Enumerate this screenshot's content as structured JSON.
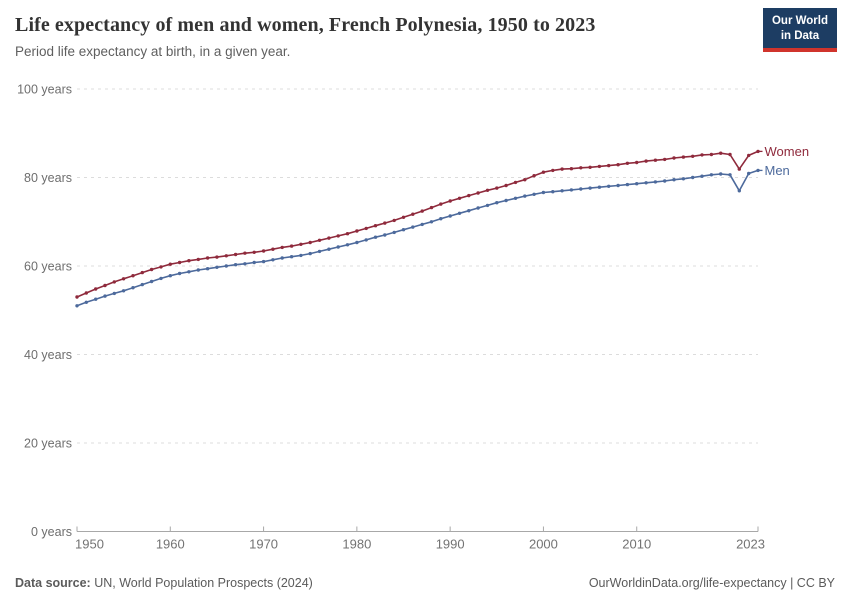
{
  "header": {
    "title": "Life expectancy of men and women, French Polynesia, 1950 to 2023",
    "subtitle": "Period life expectancy at birth, in a given year.",
    "logo": {
      "line1": "Our World",
      "line2": "in Data",
      "bg_color": "#1d3d63",
      "bar_color": "#d0342c"
    }
  },
  "footer": {
    "source_label": "Data source:",
    "source_text": " UN, World Population Prospects (2024)",
    "rights": "OurWorldinData.org/life-expectancy | CC BY"
  },
  "chart_data": {
    "type": "line",
    "title": "Life expectancy of men and women, French Polynesia, 1950 to 2023",
    "xlabel": "",
    "ylabel": "years",
    "ylim": [
      0,
      100
    ],
    "grid": "horizontal-dashed",
    "legend_position": "right-end-labels",
    "yticks": [
      {
        "value": 0,
        "label": "0 years"
      },
      {
        "value": 20,
        "label": "20 years"
      },
      {
        "value": 40,
        "label": "40 years"
      },
      {
        "value": 60,
        "label": "60 years"
      },
      {
        "value": 80,
        "label": "80 years"
      },
      {
        "value": 100,
        "label": "100 years"
      }
    ],
    "xticks": [
      1950,
      1960,
      1970,
      1980,
      1990,
      2000,
      2010,
      2023
    ],
    "years": [
      1950,
      1951,
      1952,
      1953,
      1954,
      1955,
      1956,
      1957,
      1958,
      1959,
      1960,
      1961,
      1962,
      1963,
      1964,
      1965,
      1966,
      1967,
      1968,
      1969,
      1970,
      1971,
      1972,
      1973,
      1974,
      1975,
      1976,
      1977,
      1978,
      1979,
      1980,
      1981,
      1982,
      1983,
      1984,
      1985,
      1986,
      1987,
      1988,
      1989,
      1990,
      1991,
      1992,
      1993,
      1994,
      1995,
      1996,
      1997,
      1998,
      1999,
      2000,
      2001,
      2002,
      2003,
      2004,
      2005,
      2006,
      2007,
      2008,
      2009,
      2010,
      2011,
      2012,
      2013,
      2014,
      2015,
      2016,
      2017,
      2018,
      2019,
      2020,
      2021,
      2022,
      2023
    ],
    "series": [
      {
        "name": "Women",
        "color": "#8f2a3c",
        "values": [
          53.0,
          53.9,
          54.8,
          55.6,
          56.4,
          57.1,
          57.8,
          58.5,
          59.2,
          59.8,
          60.4,
          60.8,
          61.2,
          61.5,
          61.8,
          62.0,
          62.3,
          62.6,
          62.9,
          63.1,
          63.4,
          63.8,
          64.2,
          64.5,
          64.9,
          65.3,
          65.8,
          66.3,
          66.8,
          67.3,
          67.9,
          68.5,
          69.1,
          69.7,
          70.3,
          71.0,
          71.7,
          72.4,
          73.2,
          74.0,
          74.7,
          75.3,
          75.9,
          76.5,
          77.1,
          77.6,
          78.2,
          78.9,
          79.5,
          80.4,
          81.2,
          81.6,
          81.9,
          82.0,
          82.2,
          82.3,
          82.5,
          82.7,
          82.9,
          83.2,
          83.4,
          83.7,
          83.9,
          84.1,
          84.4,
          84.6,
          84.8,
          85.1,
          85.2,
          85.5,
          85.2,
          81.9,
          85.0,
          85.9
        ]
      },
      {
        "name": "Men",
        "color": "#4d6a9c",
        "values": [
          51.0,
          51.8,
          52.5,
          53.2,
          53.8,
          54.4,
          55.1,
          55.8,
          56.5,
          57.2,
          57.8,
          58.3,
          58.7,
          59.1,
          59.4,
          59.7,
          60.0,
          60.3,
          60.5,
          60.8,
          61.0,
          61.4,
          61.8,
          62.1,
          62.4,
          62.8,
          63.3,
          63.8,
          64.3,
          64.8,
          65.3,
          65.9,
          66.5,
          67.0,
          67.6,
          68.2,
          68.8,
          69.4,
          70.0,
          70.7,
          71.3,
          71.9,
          72.5,
          73.1,
          73.7,
          74.3,
          74.8,
          75.3,
          75.8,
          76.2,
          76.6,
          76.8,
          77.0,
          77.2,
          77.4,
          77.6,
          77.8,
          78.0,
          78.2,
          78.4,
          78.6,
          78.8,
          79.0,
          79.2,
          79.5,
          79.7,
          80.0,
          80.3,
          80.6,
          80.8,
          80.6,
          77.0,
          80.9,
          81.6
        ]
      }
    ]
  }
}
